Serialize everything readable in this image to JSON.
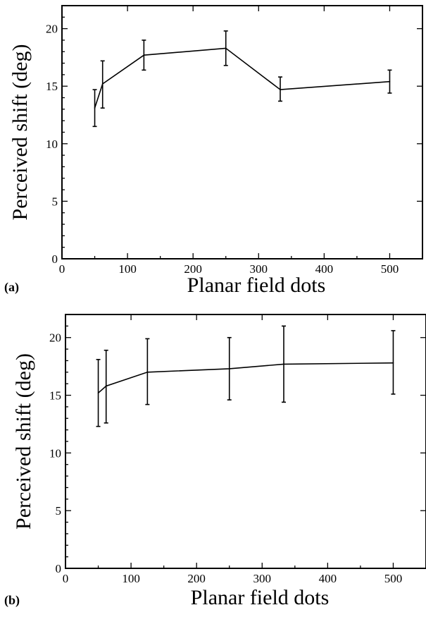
{
  "chart_data": [
    {
      "type": "line",
      "panel_label": "(a)",
      "xlabel": "Planar field dots",
      "ylabel": "Perceived shift (deg)",
      "xlim": [
        0,
        550
      ],
      "ylim": [
        0,
        22
      ],
      "xticks": [
        0,
        100,
        200,
        300,
        400,
        500
      ],
      "yticks": [
        0,
        5,
        10,
        15,
        20
      ],
      "grid": false,
      "series": [
        {
          "x": [
            50,
            62,
            125,
            250,
            333,
            500
          ],
          "y": [
            13.1,
            15.2,
            17.7,
            18.3,
            14.7,
            15.4
          ],
          "err_low": [
            11.5,
            13.1,
            16.4,
            16.8,
            13.7,
            14.4
          ],
          "err_high": [
            14.7,
            17.2,
            19.0,
            19.8,
            15.8,
            16.4
          ]
        }
      ]
    },
    {
      "type": "line",
      "panel_label": "(b)",
      "xlabel": "Planar field dots",
      "ylabel": "Perceived shift (deg)",
      "xlim": [
        0,
        550
      ],
      "ylim": [
        0,
        22
      ],
      "xticks": [
        0,
        100,
        200,
        300,
        400,
        500
      ],
      "yticks": [
        0,
        5,
        10,
        15,
        20
      ],
      "grid": false,
      "series": [
        {
          "x": [
            50,
            62,
            125,
            250,
            333,
            500
          ],
          "y": [
            15.2,
            15.8,
            17.0,
            17.3,
            17.7,
            17.8
          ],
          "err_low": [
            12.3,
            12.6,
            14.2,
            14.6,
            14.4,
            15.1
          ],
          "err_high": [
            18.1,
            18.9,
            19.9,
            20.0,
            21.0,
            20.6
          ]
        }
      ]
    }
  ]
}
